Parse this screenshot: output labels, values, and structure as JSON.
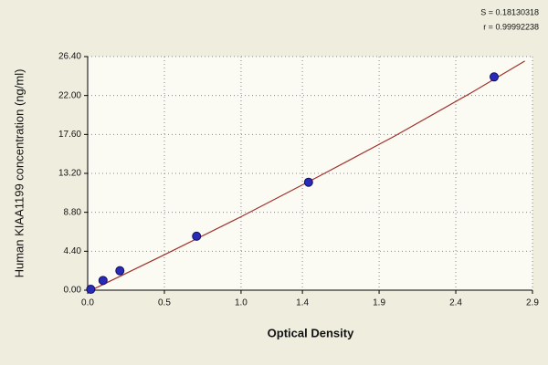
{
  "chart_data": {
    "type": "scatter",
    "stats": [
      "S = 0.18130318",
      "r = 0.99992238"
    ],
    "xlabel": "Optical Density",
    "ylabel": "Human  KIAA1199 concentration (ng/ml)",
    "x": [
      0.02,
      0.1,
      0.21,
      0.71,
      1.44,
      2.65
    ],
    "values": [
      0.1,
      1.1,
      2.2,
      6.1,
      12.2,
      24.1
    ],
    "color": "#2a2ab8",
    "fit": {
      "x": [
        0,
        0.5,
        1,
        1.5,
        2,
        2.5,
        2.85
      ],
      "values": [
        -0.2,
        4.0,
        8.3,
        12.8,
        17.4,
        22.3,
        25.9
      ],
      "color": "#a0302a"
    },
    "xlim": [
      0,
      2.9
    ],
    "xticks": [
      {
        "value": 0,
        "label": "0.0"
      },
      0.5,
      {
        "value": 1,
        "label": "1.0"
      },
      1.4,
      1.9,
      2.4,
      2.9
    ],
    "ylim": [
      0,
      26.4
    ],
    "yticks": [
      {
        "value": 0,
        "label": "0.00"
      },
      {
        "value": 4.4,
        "label": "4.40"
      },
      {
        "value": 8.8,
        "label": "8.80"
      },
      {
        "value": 13.2,
        "label": "13.20"
      },
      {
        "value": 17.6,
        "label": "17.60"
      },
      {
        "value": 22,
        "label": "22.00"
      },
      {
        "value": 26.4,
        "label": "26.40"
      }
    ],
    "grid": true
  }
}
